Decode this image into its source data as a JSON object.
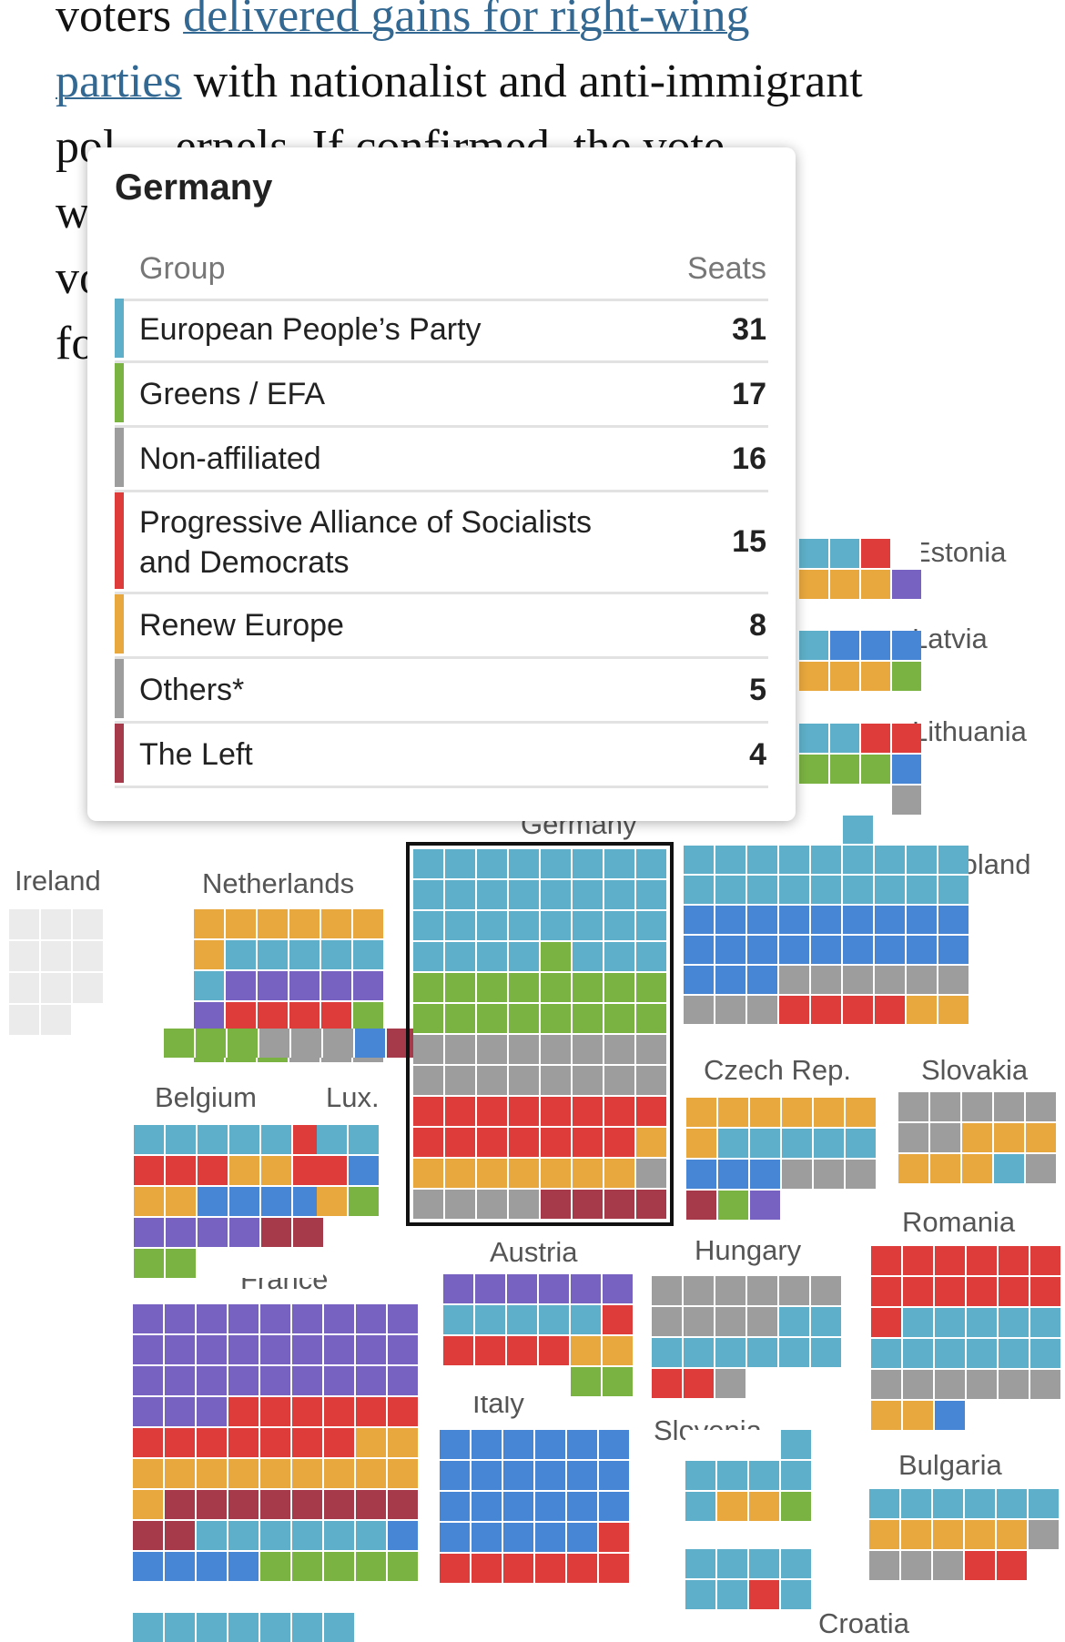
{
  "article": {
    "line1_text": "voters ",
    "link_part1": "delivered gains for right-wing",
    "link_part2": "parties",
    "line2_rest": " with nationalist and anti-immigrant",
    "line3": "pol     ernels. If confirmed, the vote",
    "line4": "wou                                   ator of",
    "line5": "vot                                   g rebuke",
    "line6": "fo"
  },
  "colors": {
    "epp": "#5eb0ca",
    "greens": "#7bb342",
    "ni": "#9d9d9d",
    "sd": "#de3b3b",
    "renew": "#e9a83d",
    "left": "#a63a4a",
    "ecr": "#4686d4",
    "id": "#7762c2",
    "empty": "#ebebeb"
  },
  "tooltip": {
    "title": "Germany",
    "col_group": "Group",
    "col_seats": "Seats",
    "rows": [
      {
        "name": "European People’s Party",
        "seats": "31",
        "color": "#5eb0ca"
      },
      {
        "name": "Greens / EFA",
        "seats": "17",
        "color": "#7bb342"
      },
      {
        "name": "Non-affiliated",
        "seats": "16",
        "color": "#9d9d9d"
      },
      {
        "name": "Progressive Alliance of Socialists and Democrats",
        "seats": "15",
        "color": "#de3b3b"
      },
      {
        "name": "Renew Europe",
        "seats": "8",
        "color": "#e9a83d"
      },
      {
        "name": "Others*",
        "seats": "5",
        "color": "#9d9d9d"
      },
      {
        "name": "The Left",
        "seats": "4",
        "color": "#a63a4a"
      }
    ]
  },
  "countries": {
    "estonia": "Estonia",
    "latvia": "Latvia",
    "lithuania": "Lithuania",
    "poland": "Poland",
    "ireland": "Ireland",
    "netherlands": "Netherlands",
    "germany": "Germany",
    "belgium": "Belgium",
    "luxembourg": "Lux.",
    "czech": "Czech Rep.",
    "slovakia": "Slovakia",
    "romania": "Romania",
    "france": "France",
    "austria": "Austria",
    "hungary": "Hungary",
    "italy": "Italy",
    "slovenia": "Slovenia",
    "bulgaria": "Bulgaria",
    "croatia": "Croatia"
  }
}
